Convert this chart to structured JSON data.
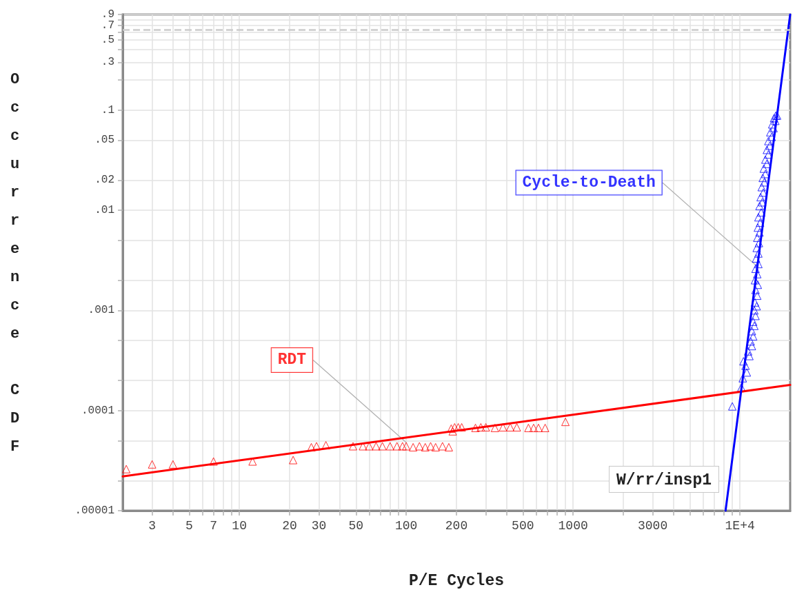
{
  "chart_data": {
    "type": "scatter",
    "xlabel": "P/E Cycles",
    "ylabel": "Occurrence CDF",
    "annotations": [
      "W/rr/insp1"
    ],
    "log": "xy",
    "grid": true,
    "xlim": [
      2,
      20000
    ],
    "xticks": [
      3,
      {
        "value": 4,
        "label": null
      },
      5,
      {
        "value": 6,
        "label": null
      },
      7,
      {
        "value": 8,
        "label": null
      },
      {
        "value": 9,
        "label": null
      },
      10,
      20,
      30,
      {
        "value": 40,
        "label": null
      },
      50,
      {
        "value": 60,
        "label": null
      },
      {
        "value": 70,
        "label": null
      },
      {
        "value": 80,
        "label": null
      },
      {
        "value": 90,
        "label": null
      },
      100,
      200,
      {
        "value": 300,
        "label": null
      },
      {
        "value": 400,
        "label": null
      },
      500,
      {
        "value": 600,
        "label": null
      },
      {
        "value": 700,
        "label": null
      },
      {
        "value": 800,
        "label": null
      },
      {
        "value": 900,
        "label": null
      },
      1000,
      {
        "value": 2000,
        "label": null
      },
      3000,
      {
        "value": 4000,
        "label": null
      },
      {
        "value": 5000,
        "label": null
      },
      {
        "value": 6000,
        "label": null
      },
      {
        "value": 7000,
        "label": null
      },
      {
        "value": 8000,
        "label": null
      },
      {
        "value": 9000,
        "label": null
      },
      {
        "value": 10000,
        "label": "1E+4"
      }
    ],
    "ylim": [
      1e-05,
      0.9
    ],
    "yticks": [
      {
        "value": 0.9,
        "label": ".9"
      },
      {
        "value": 0.8,
        "label": null
      },
      {
        "value": 0.7,
        "label": ".7"
      },
      {
        "value": 0.6,
        "label": null
      },
      {
        "value": 0.5,
        "label": ".5"
      },
      {
        "value": 0.4,
        "label": null
      },
      {
        "value": 0.3,
        "label": ".3"
      },
      {
        "value": 0.2,
        "label": null
      },
      {
        "value": 0.1,
        "label": ".1"
      },
      {
        "value": 0.05,
        "label": ".05"
      },
      {
        "value": 0.02,
        "label": ".02"
      },
      {
        "value": 0.01,
        "label": ".01"
      },
      {
        "value": 0.005,
        "label": null
      },
      {
        "value": 0.002,
        "label": null
      },
      {
        "value": 0.001,
        "label": ".001"
      },
      {
        "value": 0.0005,
        "label": null
      },
      {
        "value": 0.0002,
        "label": null
      },
      {
        "value": 0.0001,
        "label": ".0001"
      },
      {
        "value": 5e-05,
        "label": null
      },
      {
        "value": 2e-05,
        "label": null
      },
      {
        "value": 1e-05,
        "label": ".00001"
      }
    ],
    "ref_lines": [
      {
        "axis": "y",
        "value": 0.632,
        "color": "#cccccc",
        "line_style": "dashed"
      }
    ],
    "series": [
      {
        "name": "RDT",
        "type": "scatter",
        "marker": "triangle",
        "color": "#ff0000",
        "x": [
          2.1,
          3,
          4,
          7,
          12,
          21,
          27,
          29,
          33,
          48,
          55,
          60,
          66,
          72,
          80,
          88,
          95,
          100,
          110,
          120,
          130,
          140,
          150,
          165,
          180,
          186,
          190,
          195,
          205,
          215,
          260,
          280,
          300,
          340,
          380,
          420,
          460,
          540,
          580,
          620,
          680,
          900
        ],
        "values": [
          2.6e-05,
          2.9e-05,
          2.9e-05,
          3.1e-05,
          3.1e-05,
          3.2e-05,
          4.3e-05,
          4.4e-05,
          4.5e-05,
          4.4e-05,
          4.4e-05,
          4.4e-05,
          4.4e-05,
          4.4e-05,
          4.4e-05,
          4.4e-05,
          4.4e-05,
          4.4e-05,
          4.3e-05,
          4.4e-05,
          4.3e-05,
          4.4e-05,
          4.3e-05,
          4.4e-05,
          4.3e-05,
          6.6e-05,
          6.2e-05,
          6.8e-05,
          6.8e-05,
          6.8e-05,
          6.7e-05,
          6.8e-05,
          6.8e-05,
          6.7e-05,
          6.8e-05,
          6.8e-05,
          6.8e-05,
          6.7e-05,
          6.7e-05,
          6.7e-05,
          6.7e-05,
          7.7e-05
        ]
      },
      {
        "type": "line",
        "marker": "none",
        "color": "#ff0000",
        "x": [
          2,
          20000
        ],
        "values": [
          2.2e-05,
          0.00018
        ]
      },
      {
        "name": "Cycle-to-Death",
        "type": "scatter",
        "marker": "triangle",
        "color": "#0000ff",
        "x": [
          9000,
          10200,
          10400,
          11000,
          10800,
          10500,
          11400,
          11200,
          11800,
          11600,
          12000,
          11800,
          12200,
          12000,
          12400,
          12200,
          12600,
          12300,
          12700,
          12400,
          12800,
          12300,
          12700,
          12400,
          12900,
          12500,
          12900,
          12600,
          13000,
          12700,
          13100,
          12800,
          13200,
          12900,
          13400,
          13100,
          13600,
          13300,
          13800,
          13500,
          14000,
          13700,
          14200,
          13900,
          14500,
          14200,
          14800,
          14500,
          15100,
          14800,
          15500,
          15200,
          15900,
          15600,
          16300,
          16000,
          16700,
          16400
        ],
        "values": [
          0.00011,
          0.00017,
          0.00021,
          0.00024,
          0.00028,
          0.00031,
          0.00035,
          0.00039,
          0.00044,
          0.00049,
          0.00055,
          0.00062,
          0.0007,
          0.00077,
          0.00088,
          0.001,
          0.0011,
          0.0012,
          0.0014,
          0.0016,
          0.0018,
          0.002,
          0.0023,
          0.0026,
          0.0029,
          0.0033,
          0.0037,
          0.0042,
          0.0047,
          0.0053,
          0.006,
          0.0067,
          0.0075,
          0.0085,
          0.0095,
          0.011,
          0.012,
          0.0135,
          0.015,
          0.017,
          0.019,
          0.021,
          0.023,
          0.026,
          0.029,
          0.032,
          0.036,
          0.04,
          0.044,
          0.049,
          0.054,
          0.06,
          0.066,
          0.072,
          0.078,
          0.083,
          0.088,
          0.088
        ]
      },
      {
        "type": "line",
        "marker": "none",
        "color": "#0000ff",
        "x": [
          8200,
          20000
        ],
        "values": [
          1e-05,
          0.9
        ]
      }
    ]
  }
}
